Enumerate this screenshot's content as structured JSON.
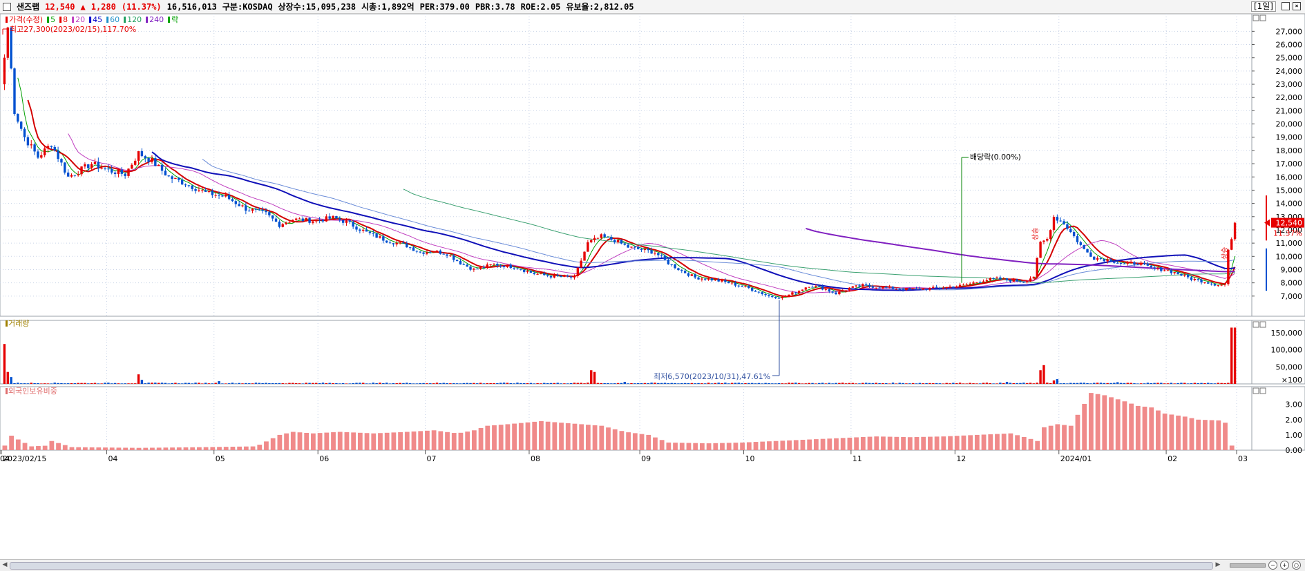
{
  "header": {
    "name": "샌즈랩",
    "price": "12,540",
    "arrow": "▲",
    "change": "1,280",
    "change_pct": "(11.37%)",
    "volume": "16,516,013",
    "market": "구분:KOSDAQ",
    "shares": "상장수:15,095,238",
    "mcap": "시총:1,892억",
    "per": "PER:379.00",
    "pbr": "PBR:3.78",
    "roe": "ROE:2.05",
    "reserve": "유보율:2,812.05",
    "period": "[1일]"
  },
  "legend": {
    "items": [
      {
        "label": "가격(수정)",
        "color": "#e60000"
      },
      {
        "label": "5",
        "color": "#00a000"
      },
      {
        "label": "8",
        "color": "#e60000"
      },
      {
        "label": "20",
        "color": "#c040c0"
      },
      {
        "label": "45",
        "color": "#0000c8"
      },
      {
        "label": "60",
        "color": "#1e90c8"
      },
      {
        "label": "120",
        "color": "#20a060"
      },
      {
        "label": "240",
        "color": "#8020c0"
      },
      {
        "label": "락",
        "color": "#00a000"
      }
    ],
    "volume_label": "거래량",
    "foreign_label": "외국인보유비중"
  },
  "annotations": {
    "high": "최고27,300(2023/02/15),117.70%",
    "low": "최저6,570(2023/10/31),47.61%",
    "dividend": "배당락(0.00%)",
    "marker_left": "상승",
    "marker_right": "상승",
    "last_price_tag": "12,540",
    "last_pct_tag": "11.37%"
  },
  "chart_data": {
    "type": "candlestick",
    "x_ticks": [
      "2023/02/15",
      "04",
      "05",
      "06",
      "07",
      "08",
      "09",
      "10",
      "11",
      "12",
      "2024/01",
      "02",
      "03",
      "04"
    ],
    "price_axis": {
      "ticks": [
        7000,
        8000,
        9000,
        10000,
        11000,
        12000,
        13000,
        14000,
        15000,
        16000,
        17000,
        18000,
        19000,
        20000,
        21000,
        22000,
        23000,
        24000,
        25000,
        26000,
        27000
      ],
      "range": [
        6000,
        27800
      ]
    },
    "volume_axis": {
      "ticks": [
        50000,
        100000,
        150000
      ],
      "labels": [
        "50,000",
        "100,000",
        "150,000"
      ],
      "unit_label": "×100",
      "range": [
        0,
        170000
      ]
    },
    "foreign_axis": {
      "ticks": [
        0,
        1,
        2,
        3
      ],
      "labels": [
        "0.00",
        "1.00",
        "2.00",
        "3.00"
      ],
      "range": [
        0,
        3.8
      ]
    },
    "price_path": [
      [
        0,
        25000
      ],
      [
        1,
        27300
      ],
      [
        3,
        21000
      ],
      [
        6,
        19000
      ],
      [
        10,
        17500
      ],
      [
        14,
        18500
      ],
      [
        19,
        16000
      ],
      [
        26,
        17000
      ],
      [
        31,
        16500
      ],
      [
        36,
        16200
      ],
      [
        40,
        17800
      ],
      [
        44,
        17200
      ],
      [
        49,
        16000
      ],
      [
        54,
        15500
      ],
      [
        60,
        14800
      ],
      [
        66,
        14500
      ],
      [
        72,
        13600
      ],
      [
        78,
        13200
      ],
      [
        82,
        12400
      ],
      [
        86,
        12800
      ],
      [
        92,
        12700
      ],
      [
        98,
        12900
      ],
      [
        102,
        12600
      ],
      [
        108,
        11800
      ],
      [
        114,
        11200
      ],
      [
        120,
        10800
      ],
      [
        124,
        10300
      ],
      [
        128,
        10400
      ],
      [
        132,
        10200
      ],
      [
        136,
        9500
      ],
      [
        140,
        9000
      ],
      [
        146,
        9400
      ],
      [
        152,
        9200
      ],
      [
        158,
        8700
      ],
      [
        163,
        8500
      ],
      [
        170,
        8400
      ],
      [
        174,
        11000
      ],
      [
        178,
        11500
      ],
      [
        182,
        11200
      ],
      [
        186,
        10700
      ],
      [
        190,
        10500
      ],
      [
        194,
        10300
      ],
      [
        198,
        9500
      ],
      [
        202,
        8900
      ],
      [
        206,
        8400
      ],
      [
        210,
        8300
      ],
      [
        216,
        8000
      ],
      [
        222,
        7600
      ],
      [
        228,
        7000
      ],
      [
        232,
        6900
      ],
      [
        236,
        7300
      ],
      [
        240,
        7800
      ],
      [
        244,
        7600
      ],
      [
        248,
        7200
      ],
      [
        252,
        7600
      ],
      [
        256,
        7800
      ],
      [
        260,
        7700
      ],
      [
        264,
        7600
      ],
      [
        270,
        7500
      ],
      [
        278,
        7600
      ],
      [
        286,
        7800
      ],
      [
        292,
        8200
      ],
      [
        296,
        8300
      ],
      [
        300,
        8200
      ],
      [
        304,
        8100
      ],
      [
        307,
        8500
      ],
      [
        309,
        11000
      ],
      [
        311,
        11300
      ],
      [
        313,
        13000
      ],
      [
        316,
        12500
      ],
      [
        319,
        11500
      ],
      [
        322,
        10500
      ],
      [
        325,
        9900
      ],
      [
        330,
        9700
      ],
      [
        334,
        9400
      ],
      [
        338,
        9500
      ],
      [
        342,
        9100
      ],
      [
        346,
        9000
      ],
      [
        350,
        8700
      ],
      [
        354,
        8300
      ],
      [
        358,
        8100
      ],
      [
        361,
        7900
      ],
      [
        363,
        7850
      ],
      [
        364,
        7900
      ],
      [
        365,
        10500
      ],
      [
        366,
        11300
      ],
      [
        367,
        12540
      ]
    ],
    "volume_spikes": [
      [
        0,
        117000
      ],
      [
        1,
        35000
      ],
      [
        2,
        20000
      ],
      [
        40,
        28000
      ],
      [
        41,
        12000
      ],
      [
        64,
        8000
      ],
      [
        175,
        40000
      ],
      [
        176,
        35000
      ],
      [
        185,
        6000
      ],
      [
        299,
        6000
      ],
      [
        309,
        40000
      ],
      [
        310,
        55000
      ],
      [
        313,
        10000
      ],
      [
        314,
        14000
      ],
      [
        332,
        5000
      ],
      [
        366,
        165000
      ],
      [
        367,
        165000
      ]
    ],
    "foreign_path": [
      [
        0,
        0.3
      ],
      [
        2,
        0.95
      ],
      [
        4,
        0.7
      ],
      [
        8,
        0.25
      ],
      [
        13,
        0.3
      ],
      [
        14,
        0.6
      ],
      [
        20,
        0.2
      ],
      [
        40,
        0.15
      ],
      [
        60,
        0.2
      ],
      [
        75,
        0.25
      ],
      [
        82,
        1.0
      ],
      [
        86,
        1.2
      ],
      [
        92,
        1.1
      ],
      [
        100,
        1.2
      ],
      [
        110,
        1.1
      ],
      [
        120,
        1.2
      ],
      [
        128,
        1.3
      ],
      [
        135,
        1.1
      ],
      [
        140,
        1.3
      ],
      [
        144,
        1.6
      ],
      [
        150,
        1.7
      ],
      [
        160,
        1.9
      ],
      [
        172,
        1.7
      ],
      [
        178,
        1.6
      ],
      [
        185,
        1.2
      ],
      [
        192,
        1.0
      ],
      [
        198,
        0.5
      ],
      [
        210,
        0.45
      ],
      [
        220,
        0.5
      ],
      [
        230,
        0.6
      ],
      [
        240,
        0.7
      ],
      [
        250,
        0.8
      ],
      [
        260,
        0.9
      ],
      [
        270,
        0.85
      ],
      [
        280,
        0.9
      ],
      [
        290,
        1.0
      ],
      [
        300,
        1.1
      ],
      [
        305,
        0.8
      ],
      [
        308,
        0.6
      ],
      [
        310,
        1.5
      ],
      [
        314,
        1.7
      ],
      [
        318,
        1.6
      ],
      [
        324,
        3.75
      ],
      [
        328,
        3.6
      ],
      [
        334,
        3.2
      ],
      [
        338,
        2.9
      ],
      [
        342,
        2.8
      ],
      [
        346,
        2.4
      ],
      [
        352,
        2.2
      ],
      [
        356,
        2.0
      ],
      [
        362,
        1.95
      ],
      [
        364,
        1.8
      ],
      [
        365,
        0.3
      ],
      [
        367,
        0.3
      ]
    ]
  }
}
